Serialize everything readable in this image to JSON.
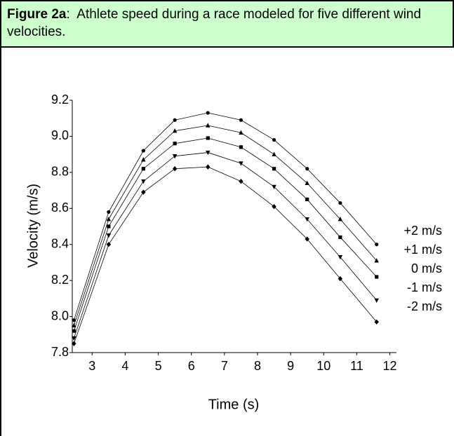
{
  "caption": {
    "label": "Figure 2a",
    "text": ":  Athlete speed during a race modeled for five different wind velocities."
  },
  "chart_data": {
    "type": "line",
    "xlabel": "Time (s)",
    "ylabel": "Velocity (m/s)",
    "x": [
      2.45,
      3.5,
      4.55,
      5.5,
      6.5,
      7.5,
      8.5,
      9.5,
      10.5,
      11.6
    ],
    "series": [
      {
        "name": "+2 m/s",
        "color": "#000000",
        "marker": "circle",
        "values": [
          7.98,
          8.58,
          8.92,
          9.09,
          9.13,
          9.09,
          8.98,
          8.82,
          8.63,
          8.4
        ]
      },
      {
        "name": "+1 m/s",
        "color": "#000000",
        "marker": "triangle-up",
        "values": [
          7.95,
          8.54,
          8.87,
          9.03,
          9.06,
          9.02,
          8.9,
          8.74,
          8.54,
          8.31
        ]
      },
      {
        "name": "0 m/s",
        "color": "#000000",
        "marker": "square",
        "values": [
          7.92,
          8.5,
          8.82,
          8.96,
          8.99,
          8.94,
          8.82,
          8.65,
          8.44,
          8.22
        ]
      },
      {
        "name": "-1 m/s",
        "color": "#000000",
        "marker": "triangle-down",
        "values": [
          7.88,
          8.45,
          8.75,
          8.89,
          8.91,
          8.85,
          8.72,
          8.54,
          8.33,
          8.09
        ]
      },
      {
        "name": "-2 m/s",
        "color": "#000000",
        "marker": "diamond",
        "values": [
          7.85,
          8.4,
          8.69,
          8.82,
          8.83,
          8.75,
          8.61,
          8.43,
          8.21,
          7.97
        ]
      }
    ],
    "xlim": [
      2.4,
      12.2
    ],
    "xticks": [
      3,
      4,
      5,
      6,
      7,
      8,
      9,
      10,
      11,
      12
    ],
    "ylim": [
      7.8,
      9.2
    ],
    "yticks": [
      7.8,
      {
        "value": 8,
        "label": "8.0"
      },
      8.2,
      8.4,
      8.6,
      8.8,
      {
        "value": 9,
        "label": "9.0"
      },
      9.2
    ]
  }
}
